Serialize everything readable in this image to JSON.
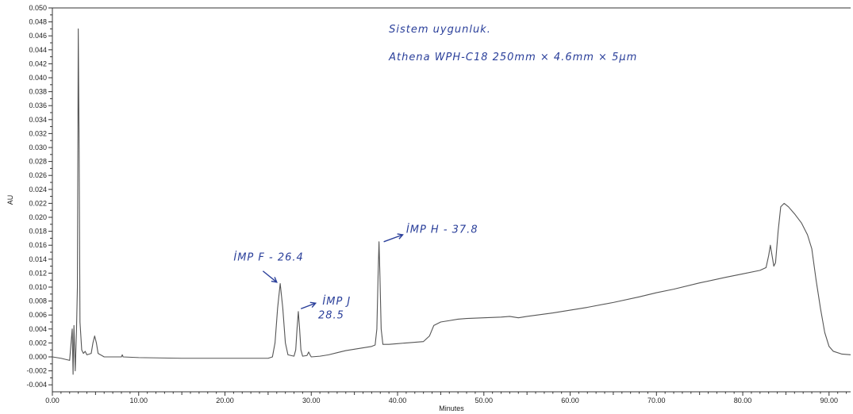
{
  "chart_data": {
    "type": "line",
    "xlabel": "Minutes",
    "ylabel": "AU",
    "xlim": [
      0,
      92.5
    ],
    "ylim": [
      -0.005,
      0.05
    ],
    "grid": false,
    "x_ticks": [
      "0.00",
      "10.00",
      "20.00",
      "30.00",
      "40.00",
      "50.00",
      "60.00",
      "70.00",
      "80.00",
      "90.00"
    ],
    "y_ticks": [
      "-0.004",
      "-0.002",
      "0.000",
      "0.002",
      "0.004",
      "0.006",
      "0.008",
      "0.010",
      "0.012",
      "0.014",
      "0.016",
      "0.018",
      "0.020",
      "0.022",
      "0.024",
      "0.026",
      "0.028",
      "0.030",
      "0.032",
      "0.034",
      "0.036",
      "0.038",
      "0.040",
      "0.042",
      "0.044",
      "0.046",
      "0.048",
      "0.050"
    ],
    "series": [
      {
        "color": "#555555",
        "points": [
          [
            0,
            0.0
          ],
          [
            1,
            -0.0002
          ],
          [
            2,
            -0.0005
          ],
          [
            2.3,
            0.004
          ],
          [
            2.4,
            -0.0025
          ],
          [
            2.5,
            0.0045
          ],
          [
            2.65,
            -0.002
          ],
          [
            2.8,
            0.004
          ],
          [
            2.9,
            0.01
          ],
          [
            3.0,
            0.047
          ],
          [
            3.1,
            0.03
          ],
          [
            3.2,
            0.005
          ],
          [
            3.4,
            0.001
          ],
          [
            3.6,
            0.0005
          ],
          [
            3.8,
            0.0008
          ],
          [
            4.0,
            0.0003
          ],
          [
            4.5,
            0.0005
          ],
          [
            4.7,
            0.002
          ],
          [
            4.9,
            0.003
          ],
          [
            5.1,
            0.002
          ],
          [
            5.3,
            0.0005
          ],
          [
            6,
            0.0
          ],
          [
            8,
            0.0
          ],
          [
            8.1,
            0.0003
          ],
          [
            8.2,
            0.0
          ],
          [
            10,
            -0.0001
          ],
          [
            15,
            -0.0002
          ],
          [
            20,
            -0.0002
          ],
          [
            25,
            -0.0002
          ],
          [
            25.5,
            0.0
          ],
          [
            25.8,
            0.002
          ],
          [
            26.1,
            0.007
          ],
          [
            26.4,
            0.0105
          ],
          [
            26.7,
            0.007
          ],
          [
            27.0,
            0.002
          ],
          [
            27.3,
            0.0003
          ],
          [
            28.0,
            0.0001
          ],
          [
            28.2,
            0.001
          ],
          [
            28.35,
            0.004
          ],
          [
            28.5,
            0.0065
          ],
          [
            28.65,
            0.004
          ],
          [
            28.8,
            0.001
          ],
          [
            29.0,
            0.0001
          ],
          [
            29.5,
            0.0002
          ],
          [
            29.7,
            0.0007
          ],
          [
            29.9,
            0.0002
          ],
          [
            30,
            0.0
          ],
          [
            31,
            0.0001
          ],
          [
            32,
            0.0003
          ],
          [
            33,
            0.0006
          ],
          [
            34,
            0.0009
          ],
          [
            35,
            0.0011
          ],
          [
            36,
            0.0013
          ],
          [
            37,
            0.0015
          ],
          [
            37.4,
            0.0017
          ],
          [
            37.6,
            0.004
          ],
          [
            37.75,
            0.012
          ],
          [
            37.85,
            0.0165
          ],
          [
            37.95,
            0.012
          ],
          [
            38.1,
            0.004
          ],
          [
            38.3,
            0.0018
          ],
          [
            39,
            0.0018
          ],
          [
            40,
            0.0019
          ],
          [
            41,
            0.002
          ],
          [
            42,
            0.0021
          ],
          [
            43,
            0.0022
          ],
          [
            43.7,
            0.003
          ],
          [
            44.2,
            0.0045
          ],
          [
            45,
            0.005
          ],
          [
            46,
            0.0052
          ],
          [
            47,
            0.0054
          ],
          [
            48,
            0.0055
          ],
          [
            50,
            0.0056
          ],
          [
            52,
            0.0057
          ],
          [
            53,
            0.0058
          ],
          [
            54,
            0.0056
          ],
          [
            55,
            0.0058
          ],
          [
            58,
            0.0063
          ],
          [
            60,
            0.0067
          ],
          [
            62,
            0.0071
          ],
          [
            65,
            0.0078
          ],
          [
            68,
            0.0086
          ],
          [
            70,
            0.0092
          ],
          [
            72,
            0.0097
          ],
          [
            75,
            0.0106
          ],
          [
            78,
            0.0114
          ],
          [
            80,
            0.0119
          ],
          [
            82,
            0.0124
          ],
          [
            82.7,
            0.0128
          ],
          [
            83.0,
            0.0145
          ],
          [
            83.2,
            0.016
          ],
          [
            83.4,
            0.0145
          ],
          [
            83.6,
            0.013
          ],
          [
            83.8,
            0.0135
          ],
          [
            84.1,
            0.018
          ],
          [
            84.4,
            0.0215
          ],
          [
            84.8,
            0.022
          ],
          [
            85.3,
            0.0215
          ],
          [
            86,
            0.0205
          ],
          [
            86.8,
            0.0192
          ],
          [
            87.5,
            0.0175
          ],
          [
            88.0,
            0.0155
          ],
          [
            88.5,
            0.011
          ],
          [
            89.0,
            0.007
          ],
          [
            89.5,
            0.0035
          ],
          [
            90.0,
            0.0015
          ],
          [
            90.5,
            0.0008
          ],
          [
            91.5,
            0.0004
          ],
          [
            92.5,
            0.0003
          ]
        ]
      }
    ],
    "annotations": [
      {
        "text": "Sistem    uygunluk.",
        "x": 39,
        "y": 0.0465
      },
      {
        "text": "Athena    WPH-C18    250mm × 4.6mm × 5µm",
        "x": 39,
        "y": 0.0425
      },
      {
        "text": "İMP F - 26.4",
        "x": 21,
        "y": 0.0138
      },
      {
        "text": "İMP J",
        "x": 31.3,
        "y": 0.0075
      },
      {
        "text": "28.5",
        "x": 30.8,
        "y": 0.0055
      },
      {
        "text": "İMP H  -  37.8",
        "x": 41,
        "y": 0.0178
      }
    ],
    "arrows": [
      {
        "from": [
          24.4,
          0.0123
        ],
        "to": [
          26.0,
          0.0107
        ]
      },
      {
        "from": [
          28.8,
          0.0069
        ],
        "to": [
          30.5,
          0.0077
        ]
      },
      {
        "from": [
          38.4,
          0.0165
        ],
        "to": [
          40.6,
          0.0175
        ]
      }
    ]
  }
}
